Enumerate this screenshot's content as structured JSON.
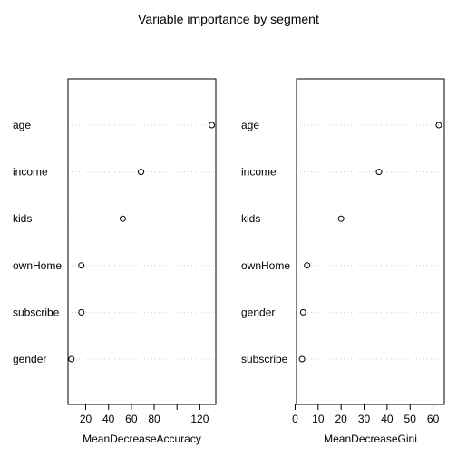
{
  "title": "Variable importance by segment",
  "chart_data": [
    {
      "type": "scatter",
      "xlabel": "MeanDecreaseAccuracy",
      "categories": [
        "age",
        "income",
        "kids",
        "ownHome",
        "subscribe",
        "gender"
      ],
      "values": [
        130.5,
        68.5,
        52.5,
        16.2,
        16.2,
        7.5
      ],
      "xlim": [
        4.5,
        134
      ],
      "xticks": [
        20,
        40,
        60,
        80,
        100,
        120
      ],
      "xtick_labels": [
        "20",
        "40",
        "60",
        "80",
        "",
        "120"
      ],
      "grid": "dotted horizontal lines",
      "marker": "open-circle"
    },
    {
      "type": "scatter",
      "xlabel": "MeanDecreaseGini",
      "categories": [
        "age",
        "income",
        "kids",
        "ownHome",
        "gender",
        "subscribe"
      ],
      "values": [
        62.5,
        36.5,
        20.0,
        5.2,
        3.5,
        3.0
      ],
      "xlim": [
        0.6,
        64.9
      ],
      "xticks": [
        0,
        10,
        20,
        30,
        40,
        50,
        60
      ],
      "xtick_labels": [
        "0",
        "10",
        "20",
        "30",
        "40",
        "50",
        "60"
      ],
      "grid": "dotted horizontal lines",
      "marker": "open-circle"
    }
  ]
}
